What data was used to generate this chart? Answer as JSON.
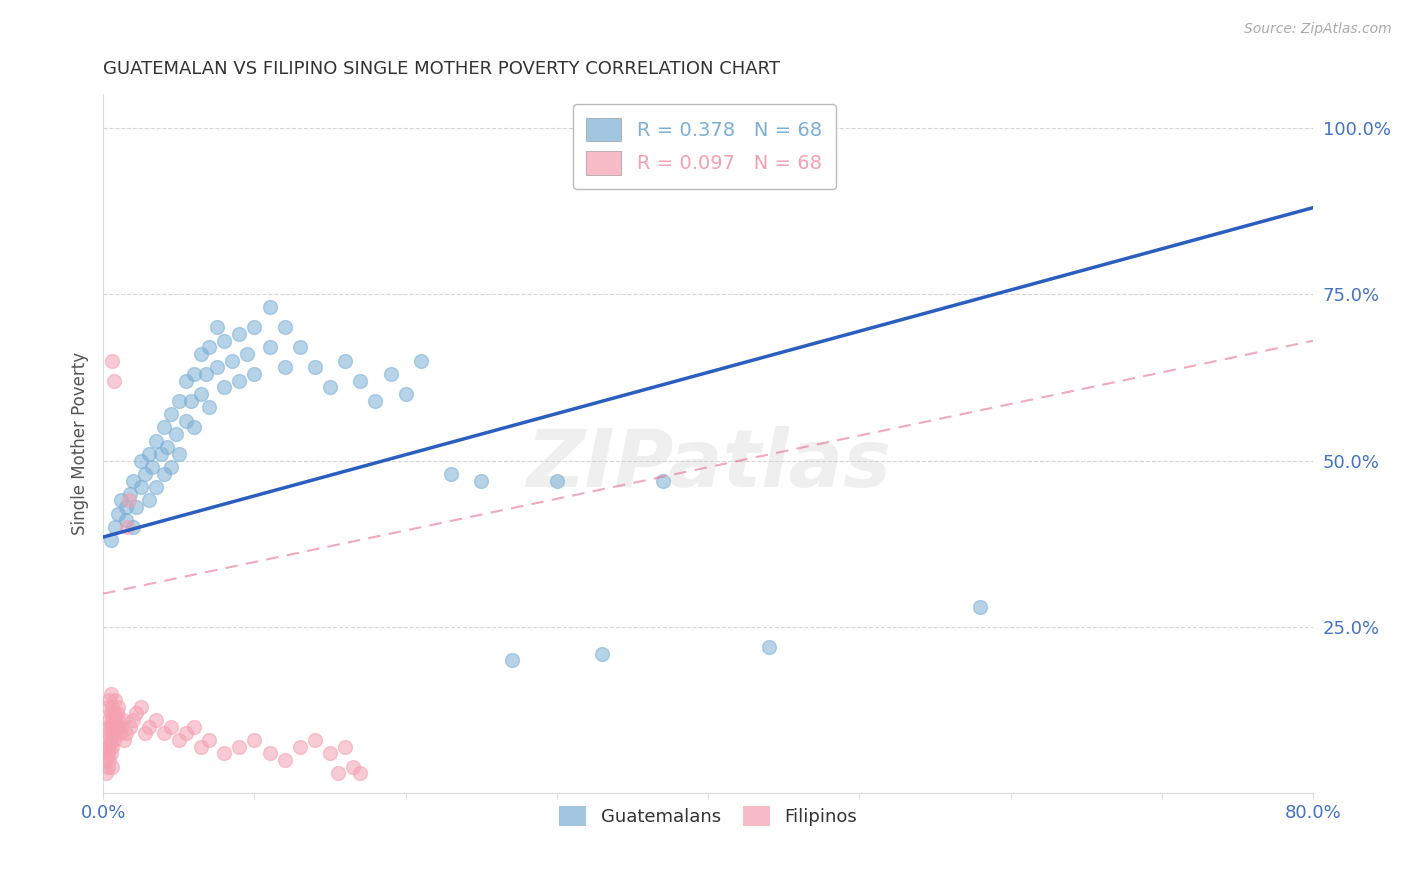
{
  "title": "GUATEMALAN VS FILIPINO SINGLE MOTHER POVERTY CORRELATION CHART",
  "source": "Source: ZipAtlas.com",
  "ylabel": "Single Mother Poverty",
  "yticks": [
    0.0,
    0.25,
    0.5,
    0.75,
    1.0
  ],
  "ytick_labels": [
    "",
    "25.0%",
    "50.0%",
    "75.0%",
    "100.0%"
  ],
  "legend_entries": [
    {
      "label": "Guatemalans",
      "color": "#7BAFD4",
      "R": 0.378,
      "N": 68
    },
    {
      "label": "Filipinos",
      "color": "#F4A0B0",
      "R": 0.097,
      "N": 68
    }
  ],
  "watermark": "ZIPatlas",
  "blue_line_color": "#2B5EBF",
  "pink_line_color": "#E87090",
  "grid_color": "#CCCCCC",
  "axis_tick_color": "#4472C4",
  "title_color": "#333333",
  "background_color": "#FFFFFF",
  "guatemalan_points": [
    [
      0.005,
      0.38
    ],
    [
      0.008,
      0.4
    ],
    [
      0.01,
      0.42
    ],
    [
      0.012,
      0.44
    ],
    [
      0.015,
      0.41
    ],
    [
      0.015,
      0.43
    ],
    [
      0.018,
      0.45
    ],
    [
      0.02,
      0.4
    ],
    [
      0.02,
      0.47
    ],
    [
      0.022,
      0.43
    ],
    [
      0.025,
      0.46
    ],
    [
      0.025,
      0.5
    ],
    [
      0.028,
      0.48
    ],
    [
      0.03,
      0.44
    ],
    [
      0.03,
      0.51
    ],
    [
      0.032,
      0.49
    ],
    [
      0.035,
      0.46
    ],
    [
      0.035,
      0.53
    ],
    [
      0.038,
      0.51
    ],
    [
      0.04,
      0.48
    ],
    [
      0.04,
      0.55
    ],
    [
      0.042,
      0.52
    ],
    [
      0.045,
      0.49
    ],
    [
      0.045,
      0.57
    ],
    [
      0.048,
      0.54
    ],
    [
      0.05,
      0.51
    ],
    [
      0.05,
      0.59
    ],
    [
      0.055,
      0.56
    ],
    [
      0.055,
      0.62
    ],
    [
      0.058,
      0.59
    ],
    [
      0.06,
      0.55
    ],
    [
      0.06,
      0.63
    ],
    [
      0.065,
      0.6
    ],
    [
      0.065,
      0.66
    ],
    [
      0.068,
      0.63
    ],
    [
      0.07,
      0.58
    ],
    [
      0.07,
      0.67
    ],
    [
      0.075,
      0.64
    ],
    [
      0.075,
      0.7
    ],
    [
      0.08,
      0.61
    ],
    [
      0.08,
      0.68
    ],
    [
      0.085,
      0.65
    ],
    [
      0.09,
      0.62
    ],
    [
      0.09,
      0.69
    ],
    [
      0.095,
      0.66
    ],
    [
      0.1,
      0.63
    ],
    [
      0.1,
      0.7
    ],
    [
      0.11,
      0.67
    ],
    [
      0.11,
      0.73
    ],
    [
      0.12,
      0.64
    ],
    [
      0.12,
      0.7
    ],
    [
      0.13,
      0.67
    ],
    [
      0.14,
      0.64
    ],
    [
      0.15,
      0.61
    ],
    [
      0.16,
      0.65
    ],
    [
      0.17,
      0.62
    ],
    [
      0.18,
      0.59
    ],
    [
      0.19,
      0.63
    ],
    [
      0.2,
      0.6
    ],
    [
      0.21,
      0.65
    ],
    [
      0.23,
      0.48
    ],
    [
      0.25,
      0.47
    ],
    [
      0.27,
      0.2
    ],
    [
      0.3,
      0.47
    ],
    [
      0.33,
      0.21
    ],
    [
      0.37,
      0.47
    ],
    [
      0.44,
      0.22
    ],
    [
      0.58,
      0.28
    ]
  ],
  "filipino_points": [
    [
      0.002,
      0.03
    ],
    [
      0.002,
      0.05
    ],
    [
      0.002,
      0.07
    ],
    [
      0.003,
      0.04
    ],
    [
      0.003,
      0.06
    ],
    [
      0.003,
      0.08
    ],
    [
      0.003,
      0.1
    ],
    [
      0.003,
      0.13
    ],
    [
      0.004,
      0.05
    ],
    [
      0.004,
      0.07
    ],
    [
      0.004,
      0.09
    ],
    [
      0.004,
      0.11
    ],
    [
      0.004,
      0.14
    ],
    [
      0.005,
      0.06
    ],
    [
      0.005,
      0.08
    ],
    [
      0.005,
      0.1
    ],
    [
      0.005,
      0.12
    ],
    [
      0.005,
      0.15
    ],
    [
      0.006,
      0.07
    ],
    [
      0.006,
      0.09
    ],
    [
      0.006,
      0.11
    ],
    [
      0.006,
      0.13
    ],
    [
      0.006,
      0.04
    ],
    [
      0.006,
      0.65
    ],
    [
      0.007,
      0.08
    ],
    [
      0.007,
      0.1
    ],
    [
      0.007,
      0.12
    ],
    [
      0.007,
      0.62
    ],
    [
      0.008,
      0.09
    ],
    [
      0.008,
      0.11
    ],
    [
      0.008,
      0.14
    ],
    [
      0.009,
      0.1
    ],
    [
      0.009,
      0.12
    ],
    [
      0.01,
      0.11
    ],
    [
      0.01,
      0.13
    ],
    [
      0.011,
      0.09
    ],
    [
      0.012,
      0.1
    ],
    [
      0.013,
      0.11
    ],
    [
      0.014,
      0.08
    ],
    [
      0.015,
      0.09
    ],
    [
      0.016,
      0.4
    ],
    [
      0.017,
      0.44
    ],
    [
      0.018,
      0.1
    ],
    [
      0.02,
      0.11
    ],
    [
      0.022,
      0.12
    ],
    [
      0.025,
      0.13
    ],
    [
      0.028,
      0.09
    ],
    [
      0.03,
      0.1
    ],
    [
      0.035,
      0.11
    ],
    [
      0.04,
      0.09
    ],
    [
      0.045,
      0.1
    ],
    [
      0.05,
      0.08
    ],
    [
      0.055,
      0.09
    ],
    [
      0.06,
      0.1
    ],
    [
      0.065,
      0.07
    ],
    [
      0.07,
      0.08
    ],
    [
      0.08,
      0.06
    ],
    [
      0.09,
      0.07
    ],
    [
      0.1,
      0.08
    ],
    [
      0.11,
      0.06
    ],
    [
      0.12,
      0.05
    ],
    [
      0.13,
      0.07
    ],
    [
      0.14,
      0.08
    ],
    [
      0.15,
      0.06
    ],
    [
      0.155,
      0.03
    ],
    [
      0.16,
      0.07
    ],
    [
      0.165,
      0.04
    ],
    [
      0.17,
      0.03
    ]
  ],
  "xlim": [
    0.0,
    0.8
  ],
  "ylim": [
    0.0,
    1.05
  ],
  "blue_line_x": [
    0.0,
    0.8
  ],
  "blue_line_y": [
    0.385,
    0.88
  ],
  "pink_line_x": [
    0.0,
    0.8
  ],
  "pink_line_y": [
    0.3,
    0.68
  ]
}
